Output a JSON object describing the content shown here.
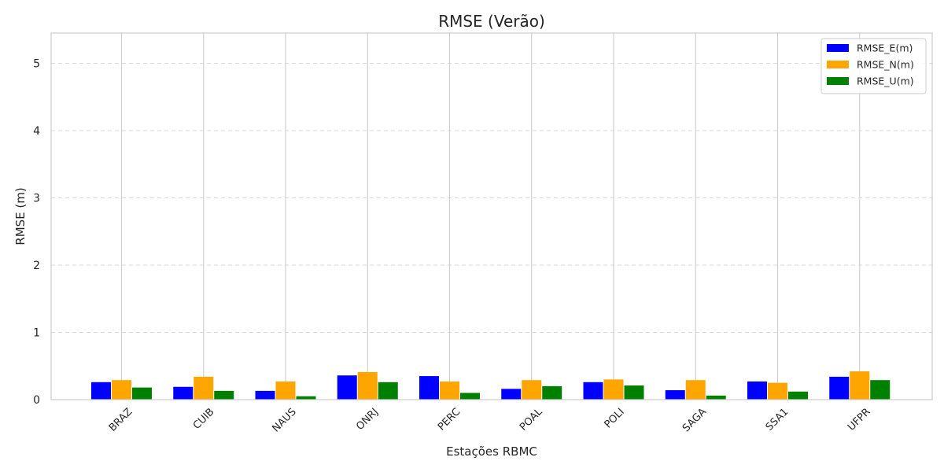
{
  "chart_data": {
    "type": "bar",
    "title": "RMSE (Verão)",
    "xlabel": "Estações RBMC",
    "ylabel": "RMSE (m)",
    "ylim": [
      0,
      5.45
    ],
    "yticks": [
      0,
      1,
      2,
      3,
      4,
      5
    ],
    "grid": true,
    "legend_position": "top-right",
    "categories": [
      "BRAZ",
      "CUIB",
      "NAUS",
      "ONRJ",
      "PERC",
      "POAL",
      "POLI",
      "SAGA",
      "SSA1",
      "UFPR"
    ],
    "series": [
      {
        "name": "RMSE_E(m)",
        "color": "#0000ff",
        "values": [
          0.26,
          0.19,
          0.13,
          0.36,
          0.35,
          0.16,
          0.26,
          0.14,
          0.27,
          0.34
        ]
      },
      {
        "name": "RMSE_N(m)",
        "color": "#ffa500",
        "values": [
          0.29,
          0.34,
          0.27,
          0.41,
          0.27,
          0.29,
          0.3,
          0.29,
          0.25,
          0.42
        ]
      },
      {
        "name": "RMSE_U(m)",
        "color": "#008000",
        "values": [
          0.18,
          0.13,
          0.05,
          0.26,
          0.1,
          0.2,
          0.21,
          0.06,
          0.12,
          0.29
        ]
      }
    ]
  }
}
